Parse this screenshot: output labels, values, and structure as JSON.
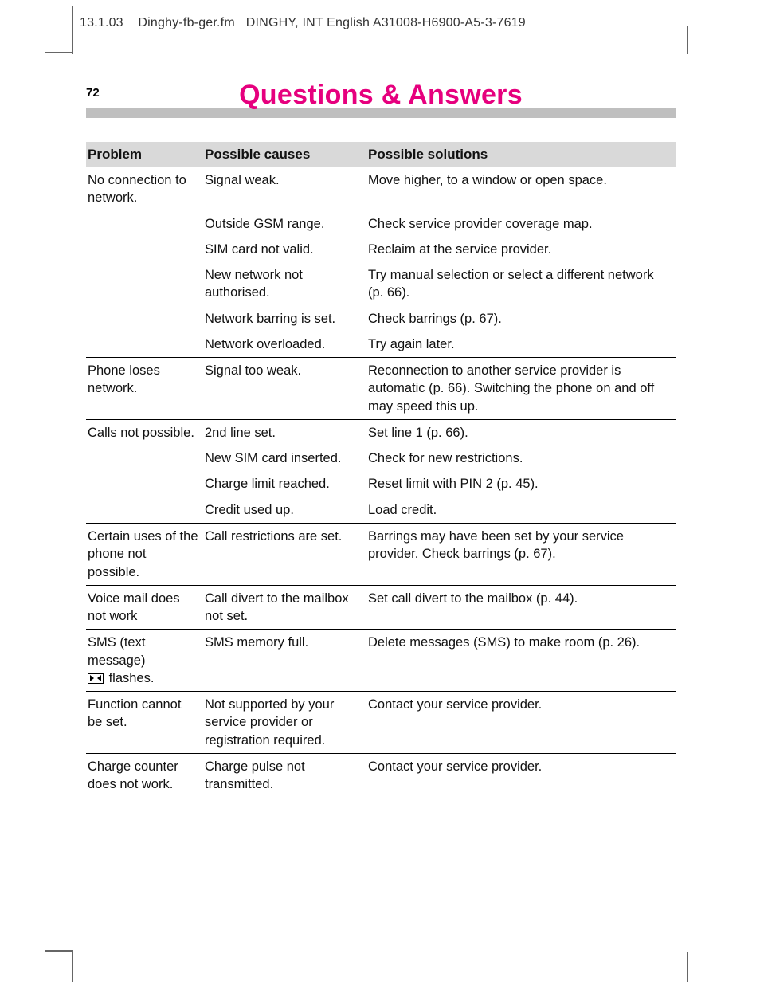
{
  "header": {
    "date": "13.1.03",
    "filename": "Dinghy-fb-ger.fm",
    "doc_id": "DINGHY, INT English A31008-H6900-A5-3-7619"
  },
  "page": {
    "number": "72",
    "title": "Questions & Answers",
    "title_color": "#e6007e"
  },
  "table": {
    "columns": [
      "Problem",
      "Possible causes",
      "Possible solutions"
    ],
    "header_bg": "#d9d9d9",
    "rows": [
      {
        "sep": false,
        "c1": "No connection to network.",
        "c2": "Signal weak.",
        "c3": "Move higher, to a window or open space."
      },
      {
        "sep": false,
        "c1": "",
        "c2": "Outside GSM range.",
        "c3": "Check service provider coverage map."
      },
      {
        "sep": false,
        "c1": "",
        "c2": "SIM card not valid.",
        "c3": "Reclaim at the service provider."
      },
      {
        "sep": false,
        "c1": "",
        "c2": "New network not authorised.",
        "c3": "Try manual selection or select a different network (p. 66)."
      },
      {
        "sep": false,
        "c1": "",
        "c2": "Network barring is set.",
        "c3": "Check barrings (p. 67)."
      },
      {
        "sep": false,
        "c1": "",
        "c2": "Network overloaded.",
        "c3": "Try again later."
      },
      {
        "sep": true,
        "c1": "Phone loses network.",
        "c2": "Signal too weak.",
        "c3": "Reconnection to another service provider is automatic (p. 66). Switching the phone on and off may speed this up."
      },
      {
        "sep": true,
        "c1": "Calls not possible.",
        "c2": "2nd line set.",
        "c3": "Set line 1 (p. 66)."
      },
      {
        "sep": false,
        "c1": "",
        "c2": "New SIM card inserted.",
        "c3": "Check for new restrictions."
      },
      {
        "sep": false,
        "c1": "",
        "c2": "Charge limit reached.",
        "c3": "Reset limit with PIN 2 (p. 45)."
      },
      {
        "sep": false,
        "c1": "",
        "c2": "Credit used up.",
        "c3": "Load credit."
      },
      {
        "sep": true,
        "c1": "Certain uses of the phone not possible.",
        "c2": "Call restrictions are set.",
        "c3": "Barrings may have been set by your service provider. Check barrings (p. 67)."
      },
      {
        "sep": true,
        "c1": "Voice mail does not work",
        "c2": "Call divert to the mailbox not set.",
        "c3": "Set call divert to the mailbox (p. 44)."
      },
      {
        "sep": true,
        "c1_prefix": "SMS (text message)",
        "c1_has_icon": true,
        "c1_suffix": " flashes.",
        "c2": "SMS memory full.",
        "c3": "Delete messages (SMS) to make room (p. 26)."
      },
      {
        "sep": true,
        "c1": "Function cannot be set.",
        "c2": "Not supported by your service provider or registration required.",
        "c3": "Contact your service provider."
      },
      {
        "sep": true,
        "c1": "Charge counter does not work.",
        "c2": "Charge pulse not transmitted.",
        "c3": "Contact your service provider."
      }
    ]
  }
}
